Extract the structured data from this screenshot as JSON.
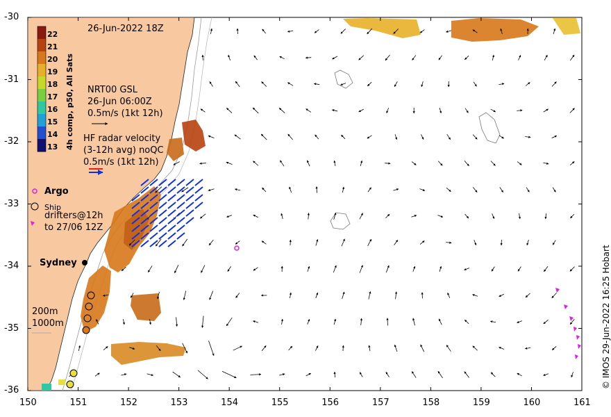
{
  "title": "26-Jun-2022 18Z",
  "credit": "© IMOS 29-Jun-2022 16:25 Hobart",
  "colorbar": {
    "title": "4h comp, p50, All Sats",
    "labels": [
      "22",
      "21",
      "20",
      "19",
      "18",
      "17",
      "16",
      "15",
      "14",
      "13"
    ],
    "colors": [
      "#8b1a0e",
      "#b8420f",
      "#d8781a",
      "#e8b028",
      "#c8d828",
      "#78d040",
      "#30c8a0",
      "#20a0d8",
      "#2050d0",
      "#101070"
    ]
  },
  "legend": {
    "gsl": {
      "name": "NRT00 GSL",
      "time": "26-Jun 06:00Z",
      "scale": "0.5m/s (1kt 12h)"
    },
    "hf": {
      "name": "HF radar velocity",
      "detail": "(3-12h avg) noQC",
      "scale": "0.5m/s (1kt 12h)"
    },
    "argo": "Argo",
    "ship": "Ship",
    "drifters_1": "drifters@12h",
    "drifters_2": "to 27/06 12Z",
    "depth_1": "200m",
    "depth_2": "1000m"
  },
  "places": {
    "sydney": "Sydney"
  },
  "axes": {
    "x_ticks": [
      "150",
      "151",
      "152",
      "153",
      "154",
      "155",
      "156",
      "157",
      "158",
      "159",
      "160",
      "161"
    ],
    "y_ticks": [
      "-30",
      "-31",
      "-32",
      "-33",
      "-34",
      "-35",
      "-36"
    ],
    "lon_range": [
      150,
      161
    ],
    "lat_range": [
      -36,
      -30
    ]
  }
}
